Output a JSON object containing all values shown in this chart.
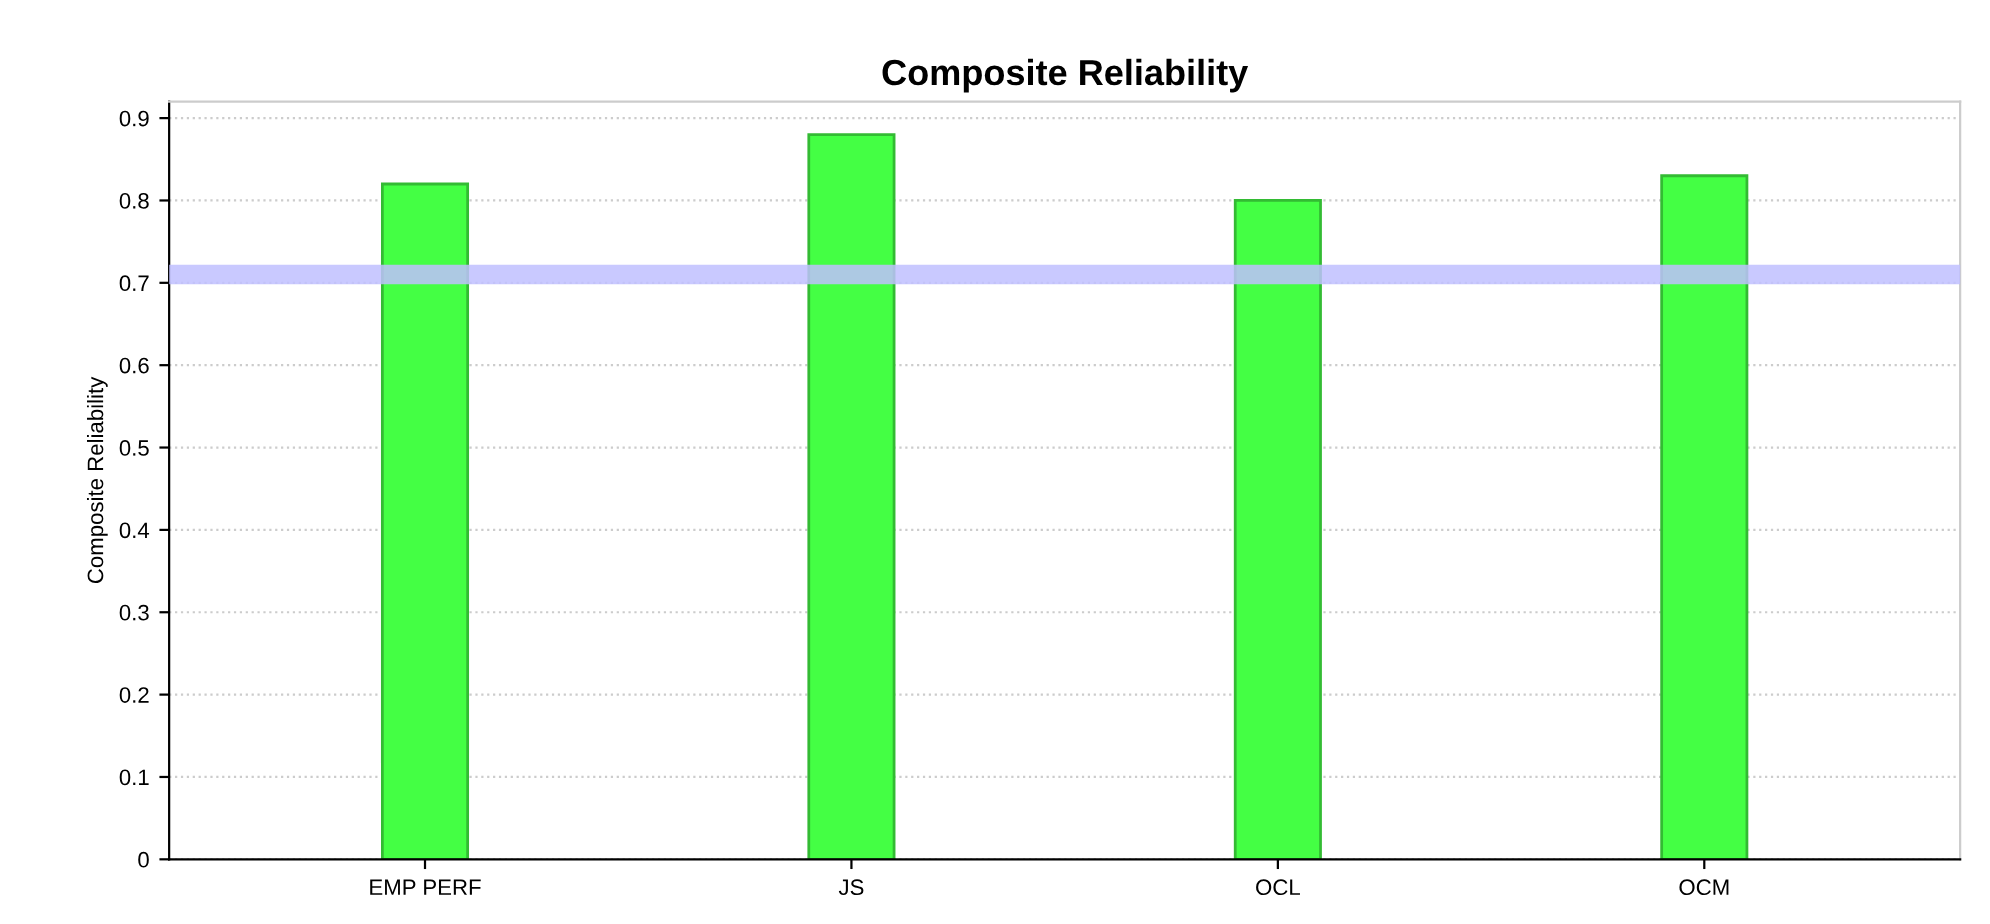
{
  "chart_data": {
    "type": "bar",
    "title": "Composite Reliability",
    "ylabel": "Composite Reliability",
    "categories": [
      "EMP PERF",
      "JS",
      "OCL",
      "OCM"
    ],
    "values": [
      0.82,
      0.88,
      0.8,
      0.83
    ],
    "color": "#44ff44",
    "ylim": [
      0,
      0.92
    ],
    "yticks": [
      0,
      0.1,
      0.2,
      0.3,
      0.4,
      0.5,
      0.6,
      0.7,
      0.8,
      0.9
    ],
    "grid": "y",
    "ref_lines": [
      {
        "axis": "y",
        "value": 0.71,
        "color": "#c0c0ff"
      }
    ]
  }
}
